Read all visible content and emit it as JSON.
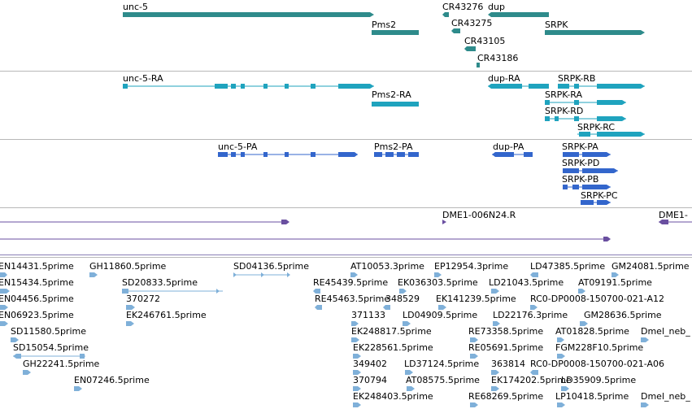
{
  "gene_track": {
    "features": [
      {
        "label": "unc-5"
      },
      {
        "label": "Pms2"
      },
      {
        "label": "CR43276"
      },
      {
        "label": "dup"
      },
      {
        "label": "CR43275"
      },
      {
        "label": "SRPK"
      },
      {
        "label": "CR43105"
      },
      {
        "label": "CR43186"
      }
    ]
  },
  "transcript_track": {
    "features": [
      {
        "label": "unc-5-RA"
      },
      {
        "label": "Pms2-RA"
      },
      {
        "label": "dup-RA"
      },
      {
        "label": "SRPK-RB"
      },
      {
        "label": "SRPK-RA"
      },
      {
        "label": "SRPK-RD"
      },
      {
        "label": "SRPK-RC"
      }
    ]
  },
  "protein_track": {
    "features": [
      {
        "label": "unc-5-PA"
      },
      {
        "label": "Pms2-PA"
      },
      {
        "label": "dup-PA"
      },
      {
        "label": "SRPK-PA"
      },
      {
        "label": "SRPK-PD"
      },
      {
        "label": "SRPK-PB"
      },
      {
        "label": "SRPK-PC"
      }
    ]
  },
  "clone_track": {
    "features": [
      {
        "label": "DME1-006N24.R"
      },
      {
        "label": "DME1-"
      }
    ]
  },
  "est_track": {
    "features": [
      {
        "label": "EN14431.5prime"
      },
      {
        "label": "GH11860.5prime"
      },
      {
        "label": "SD04136.5prime"
      },
      {
        "label": "AT10053.3prime"
      },
      {
        "label": "EP12954.3prime"
      },
      {
        "label": "LD47385.5prime"
      },
      {
        "label": "GM24081.5prime"
      },
      {
        "label": "EN15434.5prime"
      },
      {
        "label": "SD20833.5prime"
      },
      {
        "label": "RE45439.5prime"
      },
      {
        "label": "EK036303.5prime"
      },
      {
        "label": "LD21043.5prime"
      },
      {
        "label": "AT09191.5prime"
      },
      {
        "label": "EN04456.5prime"
      },
      {
        "label": "370272"
      },
      {
        "label": "RE45463.5prime"
      },
      {
        "label": "348529"
      },
      {
        "label": "EK141239.5prime"
      },
      {
        "label": "RC0-DP0008-150700-021-A12"
      },
      {
        "label": "EN06923.5prime"
      },
      {
        "label": "EK246761.5prime"
      },
      {
        "label": "371133"
      },
      {
        "label": "LD04909.5prime"
      },
      {
        "label": "LD22176.3prime"
      },
      {
        "label": "GM28636.5prime"
      },
      {
        "label": "SD11580.5prime"
      },
      {
        "label": "EK248817.5prime"
      },
      {
        "label": "RE73358.5prime"
      },
      {
        "label": "AT01828.5prime"
      },
      {
        "label": "Dmel_neb_"
      },
      {
        "label": "SD15054.5prime"
      },
      {
        "label": "EK228561.5prime"
      },
      {
        "label": "RE05691.5prime"
      },
      {
        "label": "FGM228F10.5prime"
      },
      {
        "label": "GH22241.5prime"
      },
      {
        "label": "349402"
      },
      {
        "label": "LD37124.5prime"
      },
      {
        "label": "363814"
      },
      {
        "label": "RC0-DP0008-150700-021-A06"
      },
      {
        "label": "EN07246.5prime"
      },
      {
        "label": "370794"
      },
      {
        "label": "AT08575.5prime"
      },
      {
        "label": "EK174202.5prime"
      },
      {
        "label": "LD35909.5prime"
      },
      {
        "label": "EK248403.5prime"
      },
      {
        "label": "RE68269.5prime"
      },
      {
        "label": "LP10418.5prime"
      },
      {
        "label": "Dmel_neb_"
      }
    ]
  },
  "colors": {
    "gene": "#2e8b8b",
    "transcript": "#1fa3be",
    "protein": "#3366cc",
    "clone": "#6a4fa0",
    "est": "#7fb0d9"
  }
}
